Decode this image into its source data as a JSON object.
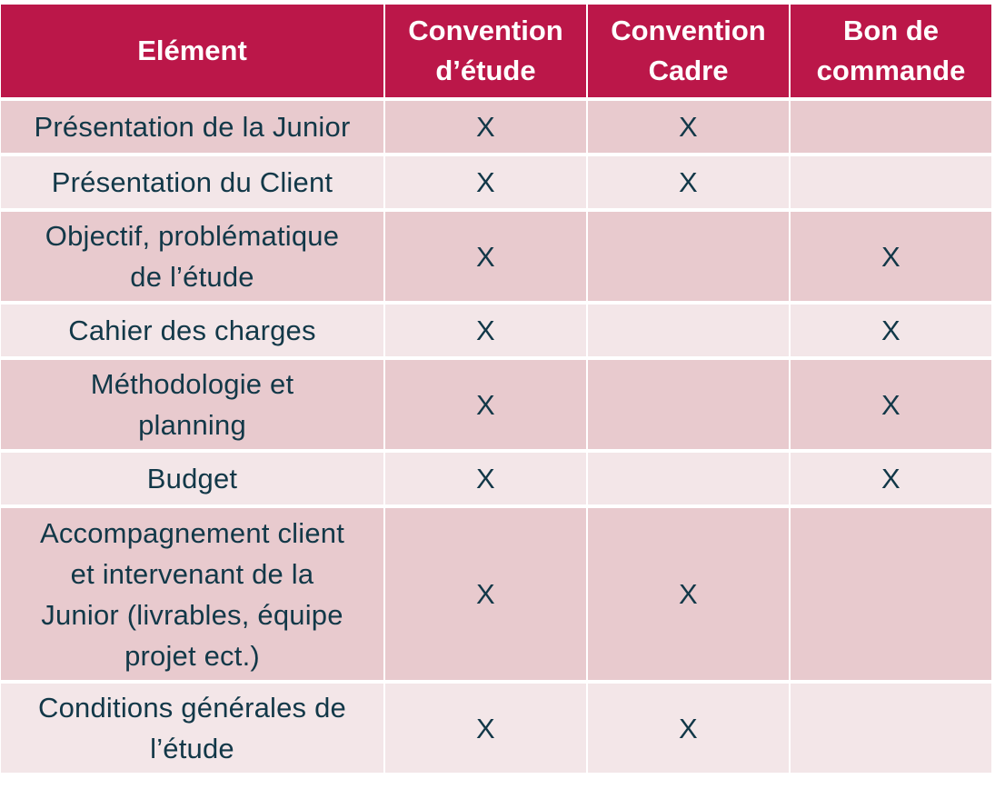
{
  "table": {
    "headers": [
      "Elément",
      "Convention\nd’étude",
      "Convention\nCadre",
      "Bon de\ncommande"
    ],
    "mark": "X",
    "rows": [
      {
        "element": "Présentation de la Junior",
        "etude": "X",
        "cadre": "X",
        "commande": ""
      },
      {
        "element": "Présentation du Client",
        "etude": "X",
        "cadre": "X",
        "commande": ""
      },
      {
        "element": "Objectif, problématique\nde l’étude",
        "etude": "X",
        "cadre": "",
        "commande": "X"
      },
      {
        "element": "Cahier des charges",
        "etude": "X",
        "cadre": "",
        "commande": "X"
      },
      {
        "element": "Méthodologie et\nplanning",
        "etude": "X",
        "cadre": "",
        "commande": "X"
      },
      {
        "element": "Budget",
        "etude": "X",
        "cadre": "",
        "commande": "X"
      },
      {
        "element": "Accompagnement client\net intervenant de la\nJunior (livrables, équipe\nprojet ect.)",
        "etude": "X",
        "cadre": "X",
        "commande": ""
      },
      {
        "element": "Conditions générales de\nl’étude",
        "etude": "X",
        "cadre": "X",
        "commande": ""
      }
    ]
  },
  "colors": {
    "header_bg": "#bb1749",
    "header_text": "#ffffff",
    "row_odd_bg": "#e8cace",
    "row_even_bg": "#f3e6e8",
    "body_text": "#123848"
  }
}
